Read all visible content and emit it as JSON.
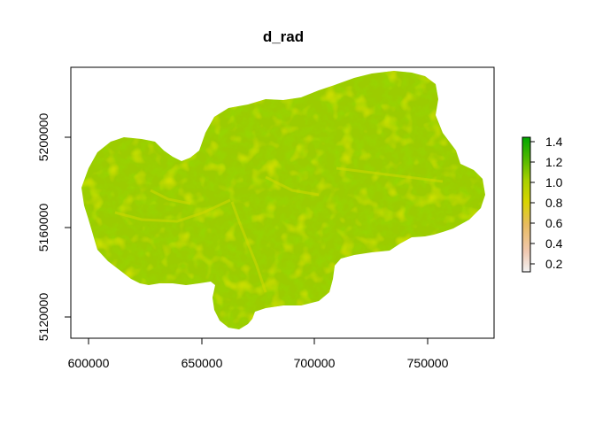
{
  "chart_data": {
    "type": "heatmap",
    "title": "d_rad",
    "xlabel": "",
    "ylabel": "",
    "xlim": [
      590000,
      780000
    ],
    "ylim": [
      5110000,
      5230000
    ],
    "x_ticks": [
      600000,
      650000,
      700000,
      750000
    ],
    "x_tick_labels": [
      "600000",
      "650000",
      "700000",
      "750000"
    ],
    "y_ticks": [
      5120000,
      5160000,
      5200000
    ],
    "y_tick_labels": [
      "5120000",
      "5160000",
      "5200000"
    ],
    "legend": {
      "position": "right",
      "range": [
        0.12,
        1.45
      ],
      "ticks": [
        0.2,
        0.4,
        0.6,
        0.8,
        1.0,
        1.2,
        1.4
      ],
      "tick_labels": [
        "0.2",
        "0.4",
        "0.6",
        "0.8",
        "1.0",
        "1.2",
        "1.4"
      ],
      "colors": [
        "#f2f2f2",
        "#f0c8a0",
        "#e8c060",
        "#d8d800",
        "#9ccc00",
        "#4cb800",
        "#00a600"
      ]
    },
    "raster_description_colors": {
      "dominant": "#9ccc00",
      "valleys": "#c8d800",
      "ridges": "#4cb800"
    }
  }
}
